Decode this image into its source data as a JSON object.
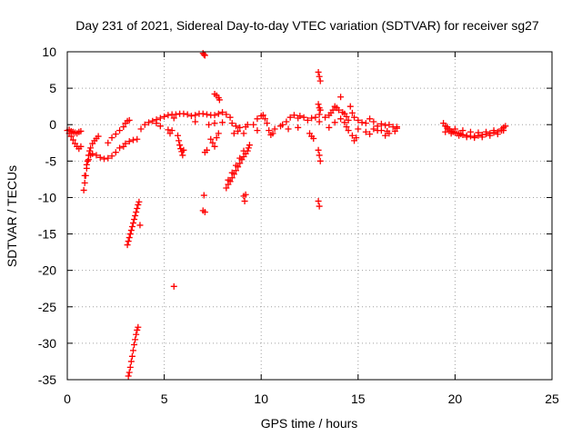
{
  "chart_data": {
    "type": "scatter",
    "title": "Day 231 of 2021, Sidereal Day-to-day VTEC variation (SDTVAR) for receiver sg27",
    "xlabel": "GPS time / hours",
    "ylabel": "SDTVAR / TECUs",
    "xlim": [
      0,
      25
    ],
    "ylim": [
      -35,
      10
    ],
    "xticks": [
      0,
      5,
      10,
      15,
      20,
      25
    ],
    "yticks": [
      10,
      5,
      0,
      -5,
      -10,
      -15,
      -20,
      -25,
      -30,
      -35
    ],
    "grid": true,
    "marker": "+",
    "color": "#ff0000",
    "series": [
      {
        "name": "SDTVAR",
        "points": [
          [
            0.0,
            -0.8
          ],
          [
            0.1,
            -1.2
          ],
          [
            0.2,
            -1.6
          ],
          [
            0.3,
            -2.1
          ],
          [
            0.4,
            -2.6
          ],
          [
            0.5,
            -3.0
          ],
          [
            0.6,
            -3.3
          ],
          [
            0.7,
            -3.0
          ],
          [
            0.1,
            -0.7
          ],
          [
            0.2,
            -0.9
          ],
          [
            0.3,
            -1.0
          ],
          [
            0.4,
            -1.1
          ],
          [
            0.5,
            -1.2
          ],
          [
            0.6,
            -1.0
          ],
          [
            0.7,
            -0.9
          ],
          [
            0.85,
            -9.0
          ],
          [
            0.9,
            -8.0
          ],
          [
            0.95,
            -7.0
          ],
          [
            1.0,
            -6.0
          ],
          [
            1.05,
            -5.0
          ],
          [
            1.1,
            -4.2
          ],
          [
            1.15,
            -3.6
          ],
          [
            1.2,
            -3.2
          ],
          [
            1.3,
            -2.6
          ],
          [
            1.4,
            -2.2
          ],
          [
            1.5,
            -1.9
          ],
          [
            1.6,
            -1.6
          ],
          [
            0.9,
            -7.0
          ],
          [
            1.0,
            -5.5
          ],
          [
            1.1,
            -4.8
          ],
          [
            1.2,
            -4.2
          ],
          [
            1.3,
            -4.0
          ],
          [
            1.5,
            -4.2
          ],
          [
            1.7,
            -4.5
          ],
          [
            1.9,
            -4.7
          ],
          [
            2.1,
            -4.6
          ],
          [
            2.3,
            -4.3
          ],
          [
            2.5,
            -3.8
          ],
          [
            2.7,
            -3.2
          ],
          [
            2.1,
            -2.5
          ],
          [
            2.3,
            -1.8
          ],
          [
            2.5,
            -1.3
          ],
          [
            2.7,
            -0.8
          ],
          [
            2.9,
            -0.3
          ],
          [
            3.0,
            0.2
          ],
          [
            3.1,
            0.5
          ],
          [
            3.2,
            0.6
          ],
          [
            2.9,
            -3.0
          ],
          [
            3.0,
            -2.6
          ],
          [
            3.2,
            -2.3
          ],
          [
            3.4,
            -2.1
          ],
          [
            3.6,
            -2.0
          ],
          [
            3.1,
            -16.5
          ],
          [
            3.15,
            -16.0
          ],
          [
            3.2,
            -15.5
          ],
          [
            3.25,
            -15.0
          ],
          [
            3.3,
            -14.5
          ],
          [
            3.35,
            -14.0
          ],
          [
            3.4,
            -13.5
          ],
          [
            3.45,
            -13.0
          ],
          [
            3.5,
            -12.5
          ],
          [
            3.55,
            -12.0
          ],
          [
            3.6,
            -11.5
          ],
          [
            3.65,
            -11.0
          ],
          [
            3.7,
            -10.6
          ],
          [
            3.75,
            -13.8
          ],
          [
            3.15,
            -34.5
          ],
          [
            3.2,
            -34.0
          ],
          [
            3.25,
            -33.3
          ],
          [
            3.3,
            -32.5
          ],
          [
            3.35,
            -31.8
          ],
          [
            3.4,
            -31.0
          ],
          [
            3.45,
            -30.2
          ],
          [
            3.5,
            -29.5
          ],
          [
            3.55,
            -28.8
          ],
          [
            3.6,
            -28.2
          ],
          [
            3.65,
            -27.8
          ],
          [
            3.8,
            -0.6
          ],
          [
            4.0,
            0.0
          ],
          [
            4.2,
            0.3
          ],
          [
            4.4,
            0.5
          ],
          [
            4.6,
            0.7
          ],
          [
            4.8,
            0.9
          ],
          [
            5.0,
            1.1
          ],
          [
            5.2,
            1.3
          ],
          [
            5.4,
            1.4
          ],
          [
            5.6,
            1.4
          ],
          [
            5.8,
            1.5
          ],
          [
            6.0,
            1.5
          ],
          [
            6.2,
            1.4
          ],
          [
            6.4,
            1.2
          ],
          [
            6.6,
            1.3
          ],
          [
            6.8,
            1.5
          ],
          [
            7.0,
            1.5
          ],
          [
            7.2,
            1.4
          ],
          [
            7.4,
            1.3
          ],
          [
            7.6,
            1.3
          ],
          [
            7.8,
            1.5
          ],
          [
            8.0,
            1.7
          ],
          [
            8.2,
            1.4
          ],
          [
            8.4,
            1.0
          ],
          [
            4.6,
            0.2
          ],
          [
            4.8,
            -0.2
          ],
          [
            5.5,
            0.9
          ],
          [
            6.6,
            0.4
          ],
          [
            7.3,
            0.0
          ],
          [
            7.6,
            0.2
          ],
          [
            8.0,
            0.3
          ],
          [
            5.2,
            -0.7
          ],
          [
            5.3,
            -1.2
          ],
          [
            5.4,
            -0.8
          ],
          [
            5.7,
            -1.5
          ],
          [
            5.75,
            -2.2
          ],
          [
            5.8,
            -2.8
          ],
          [
            5.85,
            -3.3
          ],
          [
            5.9,
            -3.7
          ],
          [
            5.95,
            -4.2
          ],
          [
            6.0,
            -3.5
          ],
          [
            5.5,
            -22.2
          ],
          [
            7.0,
            9.8
          ],
          [
            7.05,
            9.6
          ],
          [
            7.1,
            9.5
          ],
          [
            7.6,
            4.2
          ],
          [
            7.7,
            4.0
          ],
          [
            7.8,
            3.7
          ],
          [
            7.85,
            3.4
          ],
          [
            7.1,
            -3.8
          ],
          [
            7.2,
            -3.5
          ],
          [
            7.4,
            -2.0
          ],
          [
            7.5,
            -2.5
          ],
          [
            7.6,
            -3.0
          ],
          [
            7.7,
            -1.8
          ],
          [
            7.8,
            -1.2
          ],
          [
            7.05,
            -9.7
          ],
          [
            7.0,
            -11.8
          ],
          [
            7.1,
            -12.0
          ],
          [
            8.2,
            -8.7
          ],
          [
            8.3,
            -8.2
          ],
          [
            8.4,
            -7.8
          ],
          [
            8.5,
            -7.3
          ],
          [
            8.6,
            -6.8
          ],
          [
            8.7,
            -6.3
          ],
          [
            8.8,
            -5.8
          ],
          [
            8.9,
            -5.3
          ],
          [
            9.0,
            -4.8
          ],
          [
            9.1,
            -4.4
          ],
          [
            9.2,
            -4.0
          ],
          [
            9.3,
            -3.6
          ],
          [
            9.35,
            -3.2
          ],
          [
            9.4,
            -2.8
          ],
          [
            8.3,
            -7.6
          ],
          [
            8.5,
            -6.6
          ],
          [
            8.7,
            -5.6
          ],
          [
            8.9,
            -4.6
          ],
          [
            9.1,
            -3.6
          ],
          [
            9.1,
            -9.8
          ],
          [
            9.15,
            -10.5
          ],
          [
            9.2,
            -9.6
          ],
          [
            8.5,
            0.2
          ],
          [
            8.7,
            -0.2
          ],
          [
            8.9,
            -0.4
          ],
          [
            9.1,
            -1.2
          ],
          [
            9.2,
            -0.3
          ],
          [
            9.3,
            0.0
          ],
          [
            8.6,
            -1.2
          ],
          [
            8.8,
            -0.9
          ],
          [
            9.6,
            0.0
          ],
          [
            9.8,
            0.8
          ],
          [
            10.0,
            1.2
          ],
          [
            10.1,
            1.3
          ],
          [
            10.2,
            0.8
          ],
          [
            10.3,
            0.2
          ],
          [
            9.8,
            -0.8
          ],
          [
            10.4,
            -0.8
          ],
          [
            10.5,
            -1.4
          ],
          [
            10.6,
            -1.2
          ],
          [
            10.7,
            -0.6
          ],
          [
            11.0,
            -0.2
          ],
          [
            11.1,
            0.0
          ],
          [
            11.3,
            0.4
          ],
          [
            11.5,
            1.0
          ],
          [
            11.7,
            1.3
          ],
          [
            11.9,
            0.9
          ],
          [
            12.0,
            1.2
          ],
          [
            12.2,
            1.0
          ],
          [
            12.4,
            0.6
          ],
          [
            12.6,
            0.9
          ],
          [
            12.8,
            1.0
          ],
          [
            13.0,
            0.4
          ],
          [
            11.4,
            -0.6
          ],
          [
            11.9,
            -0.4
          ],
          [
            12.5,
            -1.2
          ],
          [
            12.6,
            -1.6
          ],
          [
            12.7,
            -1.9
          ],
          [
            12.95,
            7.2
          ],
          [
            13.0,
            6.6
          ],
          [
            13.05,
            6.0
          ],
          [
            12.95,
            2.8
          ],
          [
            13.0,
            2.3
          ],
          [
            13.05,
            2.0
          ],
          [
            13.0,
            1.4
          ],
          [
            12.95,
            -3.5
          ],
          [
            13.0,
            -4.2
          ],
          [
            13.05,
            -5.0
          ],
          [
            12.95,
            -10.5
          ],
          [
            13.0,
            -11.2
          ],
          [
            13.3,
            1.0
          ],
          [
            13.5,
            1.3
          ],
          [
            13.6,
            1.6
          ],
          [
            13.7,
            2.0
          ],
          [
            13.8,
            2.5
          ],
          [
            13.9,
            2.3
          ],
          [
            14.0,
            2.0
          ],
          [
            14.1,
            3.8
          ],
          [
            14.2,
            1.7
          ],
          [
            14.3,
            1.5
          ],
          [
            14.4,
            1.1
          ],
          [
            14.5,
            0.6
          ],
          [
            13.5,
            -0.4
          ],
          [
            13.8,
            0.3
          ],
          [
            14.1,
            0.8
          ],
          [
            14.3,
            0.3
          ],
          [
            14.4,
            -0.3
          ],
          [
            14.5,
            -0.8
          ],
          [
            14.7,
            -1.5
          ],
          [
            14.8,
            -2.2
          ],
          [
            14.9,
            -1.8
          ],
          [
            14.6,
            2.5
          ],
          [
            14.7,
            1.6
          ],
          [
            14.8,
            1.0
          ],
          [
            15.0,
            0.6
          ],
          [
            15.2,
            0.3
          ],
          [
            15.4,
            0.2
          ],
          [
            15.6,
            0.8
          ],
          [
            15.8,
            0.4
          ],
          [
            16.0,
            -0.2
          ],
          [
            16.2,
            0.1
          ],
          [
            16.4,
            -0.1
          ],
          [
            16.6,
            0.0
          ],
          [
            16.8,
            -0.3
          ],
          [
            17.0,
            -0.3
          ],
          [
            15.0,
            -0.6
          ],
          [
            15.4,
            -1.0
          ],
          [
            15.6,
            -1.3
          ],
          [
            15.8,
            -0.6
          ],
          [
            16.2,
            -0.8
          ],
          [
            16.4,
            -1.5
          ],
          [
            16.6,
            -1.2
          ],
          [
            16.0,
            -0.8
          ],
          [
            16.5,
            -0.9
          ],
          [
            16.9,
            -0.9
          ],
          [
            17.0,
            -0.5
          ],
          [
            19.4,
            0.2
          ],
          [
            19.5,
            -0.2
          ],
          [
            19.6,
            -0.5
          ],
          [
            19.7,
            -0.7
          ],
          [
            19.8,
            -0.9
          ],
          [
            19.9,
            -1.0
          ],
          [
            20.0,
            -1.1
          ],
          [
            20.1,
            -1.2
          ],
          [
            20.2,
            -1.2
          ],
          [
            20.3,
            -1.3
          ],
          [
            20.4,
            -1.4
          ],
          [
            20.6,
            -1.5
          ],
          [
            20.8,
            -1.6
          ],
          [
            21.0,
            -1.6
          ],
          [
            21.2,
            -1.5
          ],
          [
            21.4,
            -1.4
          ],
          [
            21.6,
            -1.3
          ],
          [
            21.8,
            -1.2
          ],
          [
            22.0,
            -1.1
          ],
          [
            22.2,
            -1.0
          ],
          [
            22.4,
            -0.8
          ],
          [
            22.5,
            -0.4
          ],
          [
            22.6,
            -0.2
          ],
          [
            19.5,
            -1.0
          ],
          [
            19.8,
            -1.2
          ],
          [
            20.2,
            -1.5
          ],
          [
            20.6,
            -1.7
          ],
          [
            21.0,
            -1.8
          ],
          [
            21.4,
            -1.7
          ],
          [
            21.8,
            -1.5
          ],
          [
            22.2,
            -1.3
          ],
          [
            22.5,
            -0.8
          ],
          [
            19.6,
            -0.3
          ],
          [
            20.0,
            -0.6
          ],
          [
            20.4,
            -0.8
          ],
          [
            20.8,
            -1.0
          ],
          [
            21.2,
            -1.1
          ],
          [
            21.6,
            -1.0
          ],
          [
            22.0,
            -0.8
          ],
          [
            22.4,
            -0.6
          ]
        ]
      }
    ]
  }
}
